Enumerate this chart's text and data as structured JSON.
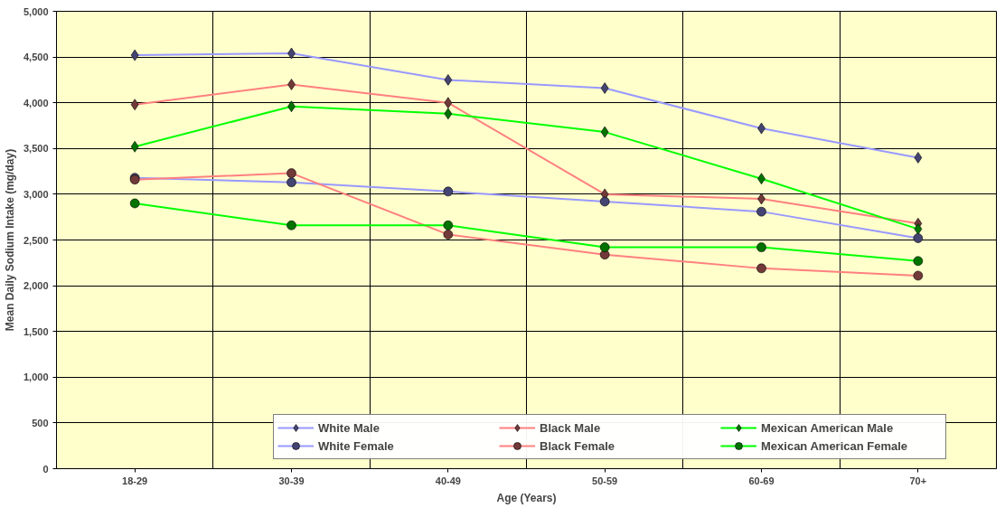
{
  "chart_data": {
    "type": "line",
    "xlabel": "Age (Years)",
    "ylabel": "Mean Daily Sodium Intake (mg/day)",
    "categories": [
      "18-29",
      "30-39",
      "40-49",
      "50-59",
      "60-69",
      "70+"
    ],
    "ylim": [
      0,
      5000
    ],
    "yticks": [
      0,
      {
        "value": 500,
        "label": "500"
      },
      {
        "value": 1000,
        "label": "1,000"
      },
      {
        "value": 1500,
        "label": "1,500"
      },
      {
        "value": 2000,
        "label": "2,000"
      },
      {
        "value": 2500,
        "label": "2,500"
      },
      {
        "value": 3000,
        "label": "3,000"
      },
      {
        "value": 3500,
        "label": "3,500"
      },
      {
        "value": 4000,
        "label": "4,000"
      },
      {
        "value": 4500,
        "label": "4,500"
      },
      {
        "value": 5000,
        "label": "5,000"
      }
    ],
    "grid": true,
    "legend": "bottom",
    "series": [
      {
        "name": "White Male",
        "color": "#9999ff",
        "marker": "diamond",
        "values": [
          4520,
          4540,
          4250,
          4160,
          3720,
          3400
        ]
      },
      {
        "name": "Black Male",
        "color": "#ff8080",
        "marker": "diamond",
        "values": [
          3980,
          4200,
          4000,
          3000,
          2950,
          2680
        ]
      },
      {
        "name": "Mexican American Male",
        "color": "#00ff00",
        "marker": "diamond",
        "values": [
          3520,
          3960,
          3880,
          3680,
          3170,
          2620
        ]
      },
      {
        "name": "White Female",
        "color": "#9999ff",
        "marker": "circle",
        "values": [
          3180,
          3130,
          3030,
          2920,
          2810,
          2520
        ]
      },
      {
        "name": "Black Female",
        "color": "#ff8080",
        "marker": "circle",
        "values": [
          3160,
          3230,
          2560,
          2340,
          2190,
          2110
        ]
      },
      {
        "name": "Mexican American Female",
        "color": "#00ff00",
        "marker": "circle",
        "values": [
          2900,
          2660,
          2660,
          2420,
          2420,
          2270
        ]
      }
    ]
  }
}
